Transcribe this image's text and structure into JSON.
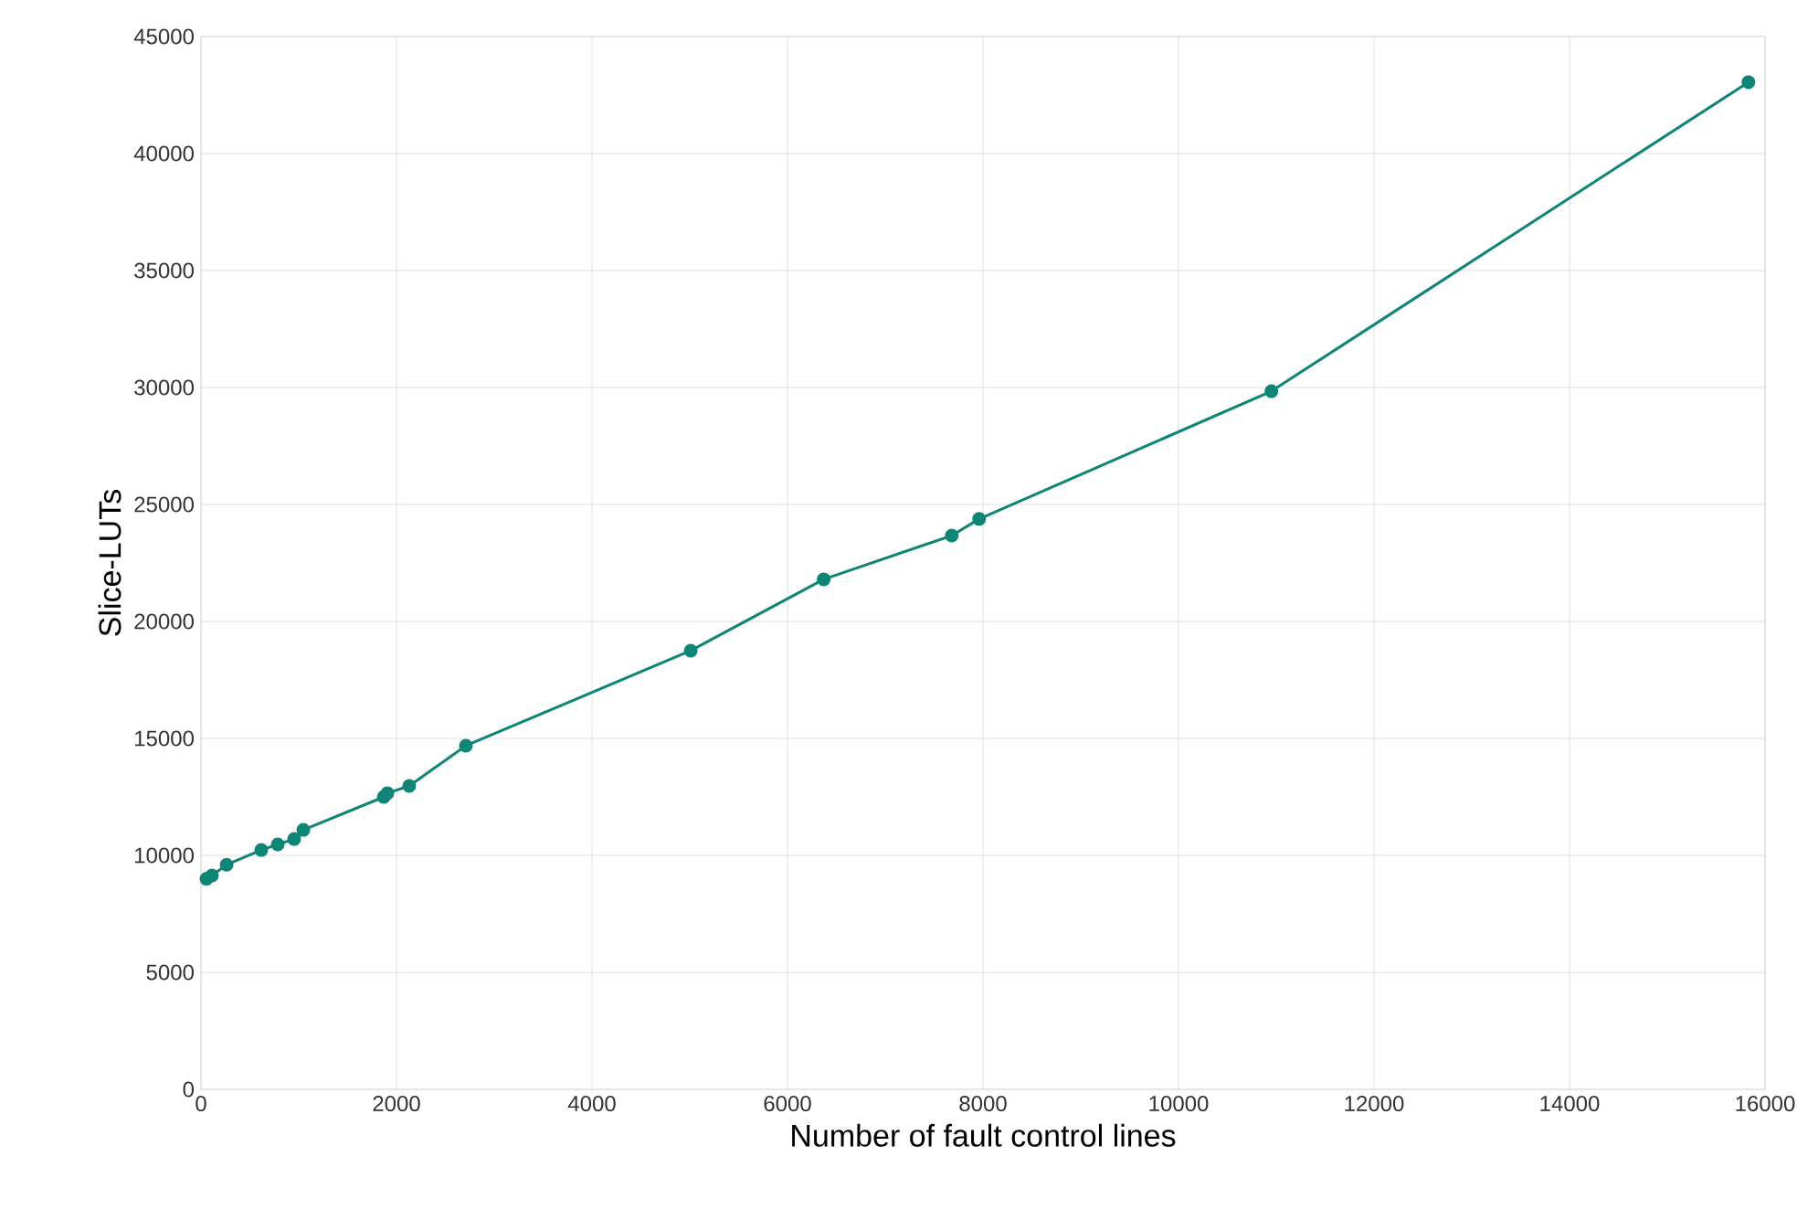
{
  "chart_data": {
    "type": "line",
    "xlabel": "Number of fault control lines",
    "ylabel": "Slice-LUTs",
    "x": [
      56,
      112,
      262,
      617,
      785,
      953,
      1047,
      1870,
      1907,
      2130,
      2710,
      5010,
      6370,
      7680,
      7960,
      10950,
      15830
    ],
    "series": [
      {
        "color": "#0e8575",
        "values": [
          9000,
          9140,
          9600,
          10230,
          10470,
          10700,
          11090,
          12500,
          12660,
          12970,
          14690,
          18750,
          21800,
          23670,
          24380,
          29840,
          43050
        ]
      }
    ],
    "xlim": [
      0,
      16000
    ],
    "xticks": [
      0,
      2000,
      4000,
      6000,
      8000,
      10000,
      12000,
      14000,
      16000
    ],
    "ylim": [
      0,
      45000
    ],
    "yticks": [
      0,
      5000,
      10000,
      15000,
      20000,
      25000,
      30000,
      35000,
      40000,
      45000
    ],
    "grid": true,
    "marker": "circle",
    "line_style": "solid"
  }
}
